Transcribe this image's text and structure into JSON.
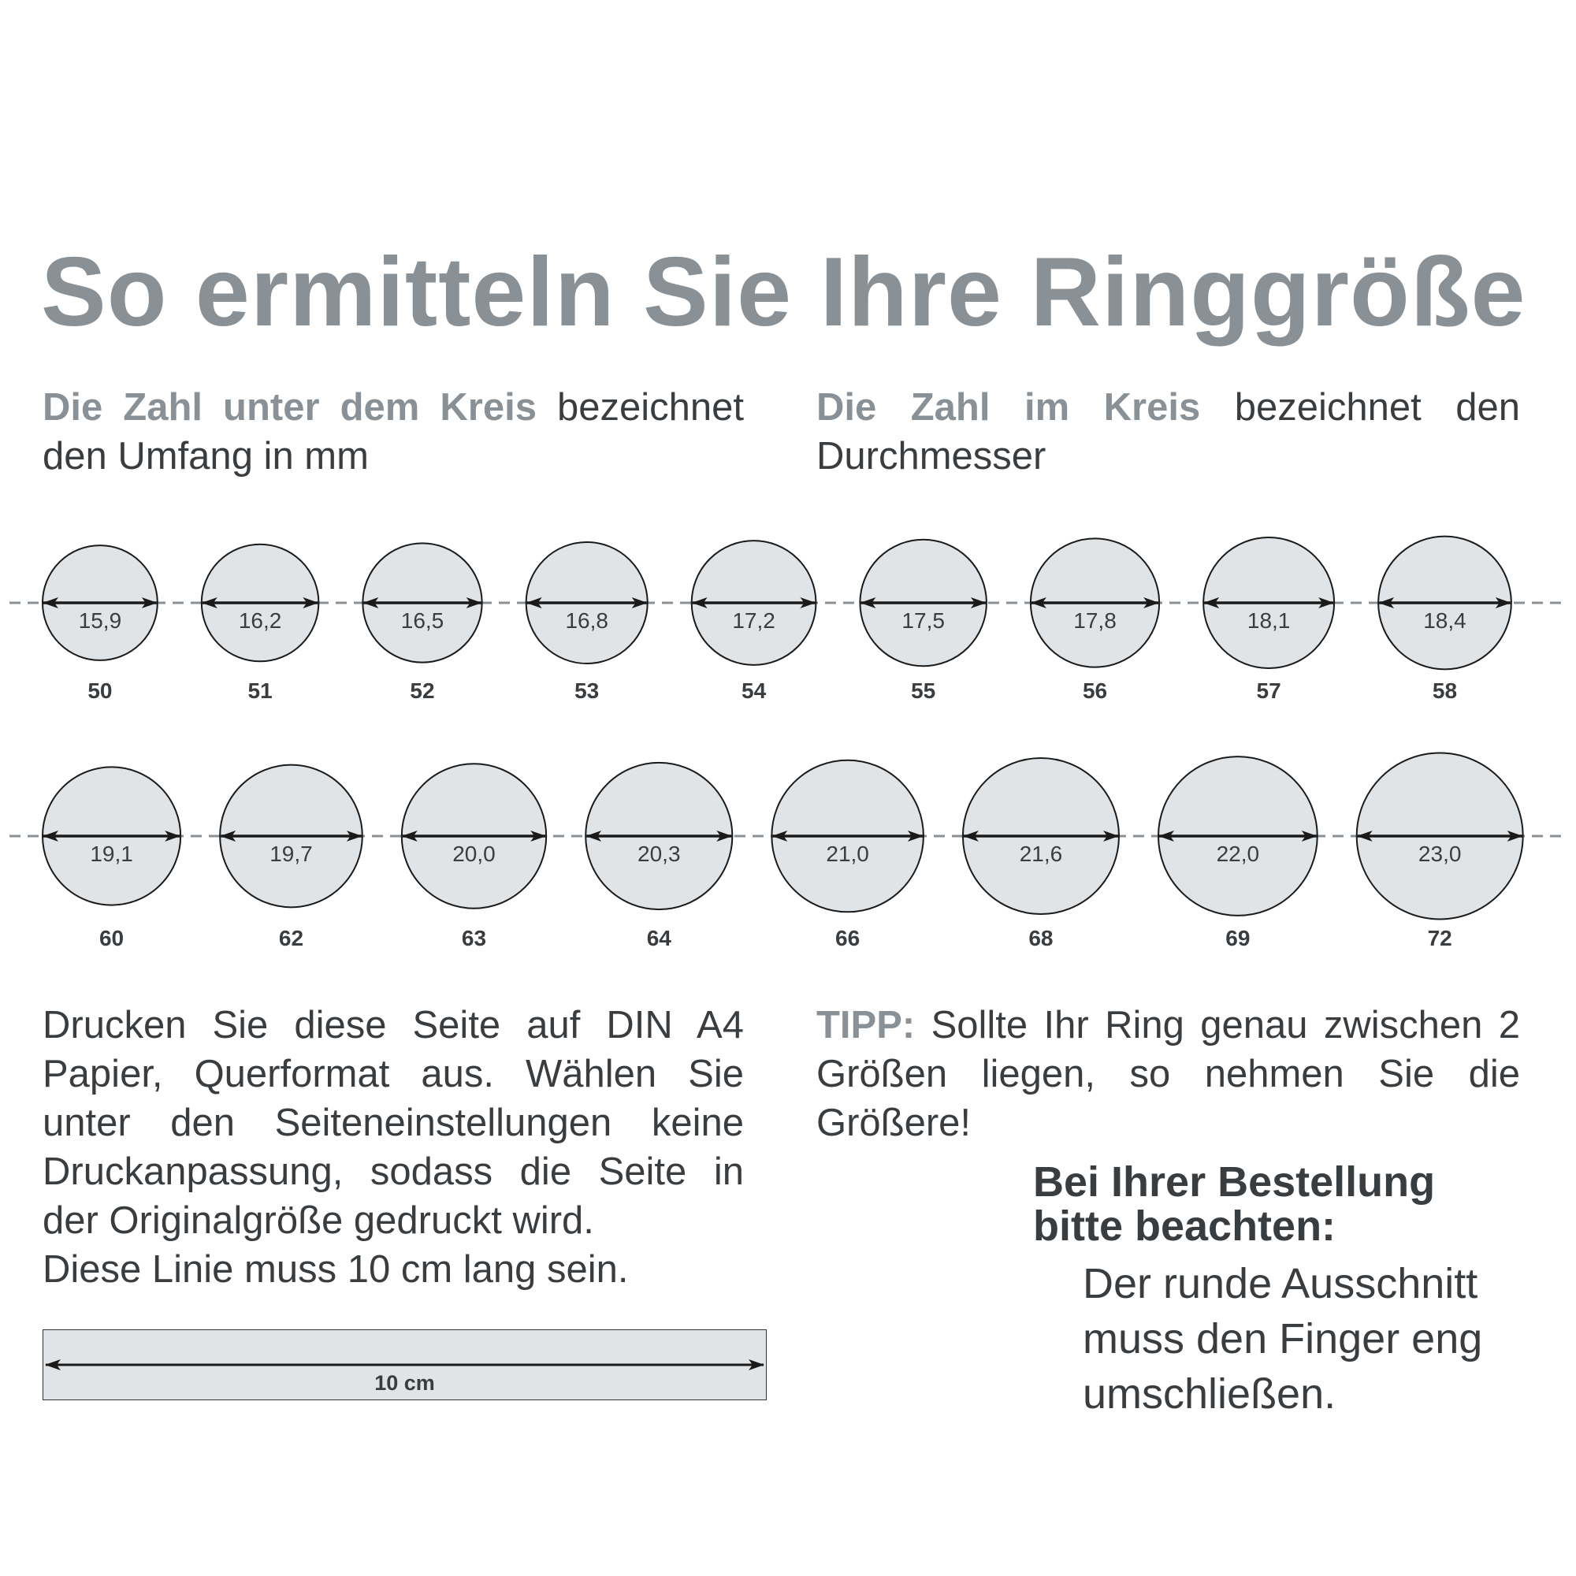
{
  "title": "So ermitteln Sie Ihre Ringgröße",
  "intro_left": {
    "highlight": "Die Zahl unter dem Kreis",
    "rest": " bezeichnet den Umfang in mm"
  },
  "intro_right": {
    "highlight": "Die Zahl im Kreis",
    "rest": " bezeichnet den Durchmesser"
  },
  "colors": {
    "accent_gray": "#8a9196",
    "circle_fill": "#e1e4e6",
    "text_dark": "#3a3d40",
    "dashed_line": "#8a9196"
  },
  "chart_data": {
    "type": "table",
    "rows": [
      {
        "sizes": [
          {
            "circumference": "50",
            "diameter": "15,9"
          },
          {
            "circumference": "51",
            "diameter": "16,2"
          },
          {
            "circumference": "52",
            "diameter": "16,5"
          },
          {
            "circumference": "53",
            "diameter": "16,8"
          },
          {
            "circumference": "54",
            "diameter": "17,2"
          },
          {
            "circumference": "55",
            "diameter": "17,5"
          },
          {
            "circumference": "56",
            "diameter": "17,8"
          },
          {
            "circumference": "57",
            "diameter": "18,1"
          },
          {
            "circumference": "58",
            "diameter": "18,4"
          }
        ]
      },
      {
        "sizes": [
          {
            "circumference": "60",
            "diameter": "19,1"
          },
          {
            "circumference": "62",
            "diameter": "19,7"
          },
          {
            "circumference": "63",
            "diameter": "20,0"
          },
          {
            "circumference": "64",
            "diameter": "20,3"
          },
          {
            "circumference": "66",
            "diameter": "21,0"
          },
          {
            "circumference": "68",
            "diameter": "21,6"
          },
          {
            "circumference": "69",
            "diameter": "22,0"
          },
          {
            "circumference": "72",
            "diameter": "23,0"
          }
        ]
      }
    ]
  },
  "print_instructions": {
    "main": "Drucken Sie diese Seite auf DIN A4 Papier, Querformat aus. Wählen Sie unter den Seiteneinstellungen keine Druckanpassung, sodass die Seite in der Originalgröße gedruckt wird.",
    "line_note": "Diese Linie muss 10 cm lang sein."
  },
  "tip": {
    "label": "TIPP:",
    "text": " Sollte Ihr Ring genau zwischen 2 Größen liegen, so nehmen Sie die Größere!"
  },
  "note": {
    "title_line1": "Bei Ihrer Bestellung",
    "title_line2": "bitte beachten:",
    "body_line1": "Der runde Ausschnitt",
    "body_line2": "muss den Finger eng",
    "body_line3": "umschließen."
  },
  "ruler": {
    "label": "10 cm"
  }
}
